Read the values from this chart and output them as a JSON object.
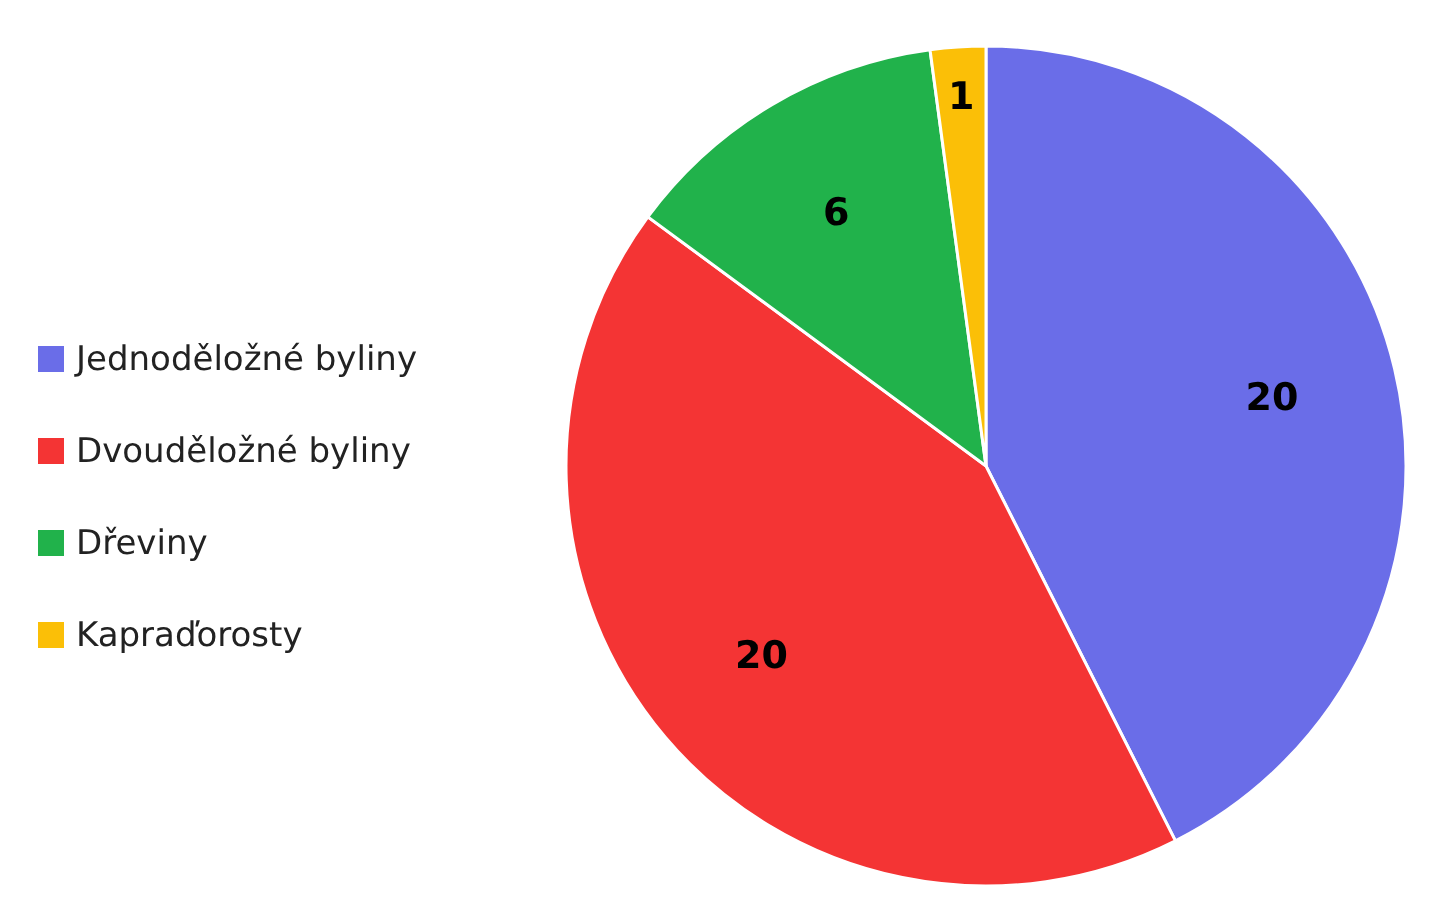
{
  "chart_data": {
    "type": "pie",
    "categories": [
      "Jednoděložné byliny",
      "Dvouděložné byliny",
      "Dřeviny",
      "Kapraďorosty"
    ],
    "values": [
      20,
      20,
      6,
      1
    ],
    "colors": [
      "#6a6de8",
      "#f43434",
      "#21b24b",
      "#fbbf07"
    ],
    "data_labels": true,
    "legend": "left"
  }
}
